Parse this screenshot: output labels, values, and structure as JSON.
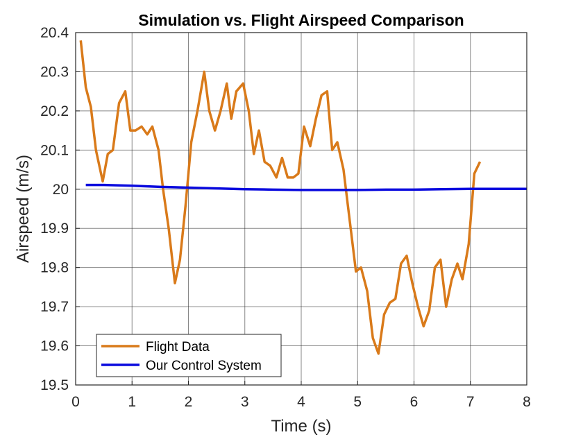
{
  "chart_data": {
    "type": "line",
    "title": "Simulation vs. Flight Airspeed Comparison",
    "xlabel": "Time (s)",
    "ylabel": "Airspeed (m/s)",
    "xlim": [
      0,
      8
    ],
    "ylim": [
      19.5,
      20.4
    ],
    "xticks": [
      "0",
      "1",
      "2",
      "3",
      "4",
      "5",
      "6",
      "7",
      "8"
    ],
    "yticks": [
      "19.5",
      "19.6",
      "19.7",
      "19.8",
      "19.9",
      "20",
      "20.1",
      "20.2",
      "20.3",
      "20.4"
    ],
    "grid": true,
    "legend_position": "bottom-left",
    "series": [
      {
        "name": "Flight Data",
        "color": "#D97A1A",
        "x": [
          0.09,
          0.18,
          0.27,
          0.36,
          0.48,
          0.57,
          0.66,
          0.77,
          0.88,
          0.97,
          1.06,
          1.17,
          1.27,
          1.36,
          1.47,
          1.55,
          1.65,
          1.76,
          1.85,
          1.95,
          2.05,
          2.16,
          2.28,
          2.37,
          2.47,
          2.57,
          2.68,
          2.76,
          2.85,
          2.97,
          3.07,
          3.16,
          3.25,
          3.35,
          3.45,
          3.56,
          3.66,
          3.76,
          3.86,
          3.95,
          4.05,
          4.16,
          4.26,
          4.36,
          4.46,
          4.55,
          4.64,
          4.75,
          4.86,
          4.97,
          5.06,
          5.17,
          5.27,
          5.37,
          5.47,
          5.57,
          5.67,
          5.77,
          5.87,
          5.97,
          6.07,
          6.17,
          6.27,
          6.37,
          6.47,
          6.57,
          6.67,
          6.77,
          6.86,
          6.97,
          7.07,
          7.17
        ],
        "y": [
          20.38,
          20.26,
          20.21,
          20.1,
          20.02,
          20.09,
          20.1,
          20.22,
          20.25,
          20.15,
          20.15,
          20.16,
          20.14,
          20.16,
          20.1,
          20.0,
          19.9,
          19.76,
          19.82,
          19.96,
          20.12,
          20.2,
          20.3,
          20.2,
          20.15,
          20.2,
          20.27,
          20.18,
          20.25,
          20.27,
          20.2,
          20.09,
          20.15,
          20.07,
          20.06,
          20.03,
          20.08,
          20.03,
          20.03,
          20.04,
          20.16,
          20.11,
          20.18,
          20.24,
          20.25,
          20.1,
          20.12,
          20.05,
          19.92,
          19.79,
          19.8,
          19.74,
          19.62,
          19.58,
          19.68,
          19.71,
          19.72,
          19.81,
          19.83,
          19.76,
          19.7,
          19.65,
          19.69,
          19.8,
          19.82,
          19.7,
          19.77,
          19.81,
          19.77,
          19.86,
          20.04,
          20.07
        ]
      },
      {
        "name": "Our Control System",
        "color": "#0A0ADE",
        "x": [
          0.18,
          0.5,
          1.0,
          1.5,
          2.0,
          2.5,
          3.0,
          3.5,
          4.0,
          4.5,
          5.0,
          5.5,
          6.0,
          6.5,
          7.0,
          7.5,
          8.0
        ],
        "y": [
          20.011,
          20.011,
          20.009,
          20.006,
          20.004,
          20.002,
          20.0,
          19.999,
          19.998,
          19.998,
          19.998,
          19.999,
          19.999,
          20.0,
          20.001,
          20.001,
          20.001
        ]
      }
    ]
  }
}
